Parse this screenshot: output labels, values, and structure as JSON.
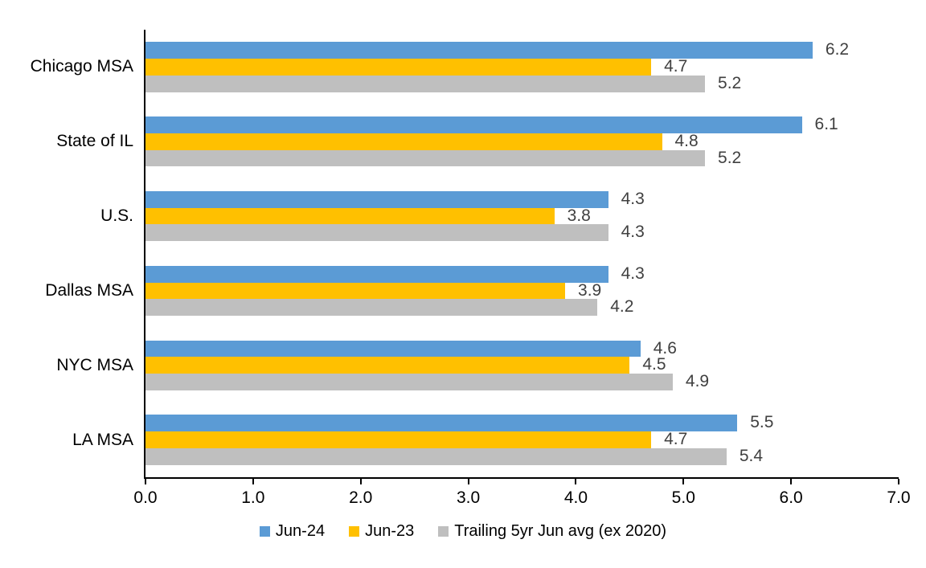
{
  "chart_data": {
    "type": "bar",
    "orientation": "horizontal",
    "title": "",
    "categories": [
      "Chicago MSA",
      "State of IL",
      "U.S.",
      "Dallas MSA",
      "NYC MSA",
      "LA MSA"
    ],
    "series": [
      {
        "name": "Jun-24",
        "color": "#5B9BD5",
        "values": [
          6.2,
          6.1,
          4.3,
          4.3,
          4.6,
          5.5
        ]
      },
      {
        "name": "Jun-23",
        "color": "#FFC000",
        "values": [
          4.7,
          4.8,
          3.8,
          3.9,
          4.5,
          4.7
        ]
      },
      {
        "name": "Trailing 5yr Jun avg (ex 2020)",
        "color": "#BFBFBF",
        "values": [
          5.2,
          5.2,
          4.3,
          4.2,
          4.9,
          5.4
        ]
      }
    ],
    "xlim": [
      0,
      7
    ],
    "xticks": [
      "0.0",
      "1.0",
      "2.0",
      "3.0",
      "4.0",
      "5.0",
      "6.0",
      "7.0"
    ],
    "legend_position": "bottom",
    "grid": false,
    "data_label_color": "#404040",
    "axis_color": "#000000",
    "background": "#FFFFFF"
  }
}
